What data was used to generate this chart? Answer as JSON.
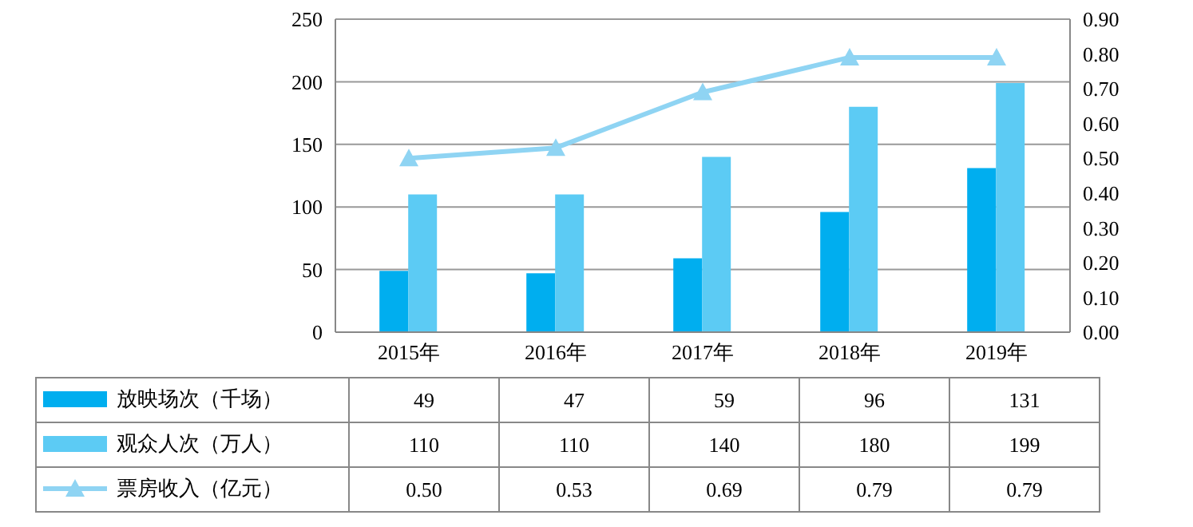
{
  "chart_data": {
    "type": "bar",
    "categories": [
      "2015年",
      "2016年",
      "2017年",
      "2018年",
      "2019年"
    ],
    "series": [
      {
        "name": "放映场次（千场）",
        "color": "#00aeef",
        "values": [
          49,
          47,
          59,
          96,
          131
        ],
        "value_labels": [
          "49",
          "47",
          "59",
          "96",
          "131"
        ]
      },
      {
        "name": "观众人次（万人）",
        "color": "#5ccbf4",
        "values": [
          110,
          110,
          140,
          180,
          199
        ],
        "value_labels": [
          "110",
          "110",
          "140",
          "180",
          "199"
        ]
      },
      {
        "name": "票房收入（亿元）",
        "type": "line",
        "axis": "y2",
        "color": "#8fd4f3",
        "values": [
          0.5,
          0.53,
          0.69,
          0.79,
          0.79
        ],
        "value_labels": [
          "0.50",
          "0.53",
          "0.69",
          "0.79",
          "0.79"
        ]
      }
    ],
    "ylim": [
      0,
      250
    ],
    "yticks": [
      0,
      50,
      100,
      150,
      200,
      250
    ],
    "y2lim": [
      0,
      0.9
    ],
    "y2ticks": [
      {
        "value": 0,
        "label": "0.00"
      },
      {
        "value": 0.1,
        "label": "0.10"
      },
      {
        "value": 0.2,
        "label": "0.20"
      },
      {
        "value": 0.3,
        "label": "0.30"
      },
      {
        "value": 0.4,
        "label": "0.40"
      },
      {
        "value": 0.5,
        "label": "0.50"
      },
      {
        "value": 0.6,
        "label": "0.60"
      },
      {
        "value": 0.7,
        "label": "0.70"
      },
      {
        "value": 0.8,
        "label": "0.80"
      },
      {
        "value": 0.9,
        "label": "0.90"
      }
    ],
    "grid": "y",
    "legend": "bottom",
    "marker": "triangle",
    "line_style": "solid"
  }
}
